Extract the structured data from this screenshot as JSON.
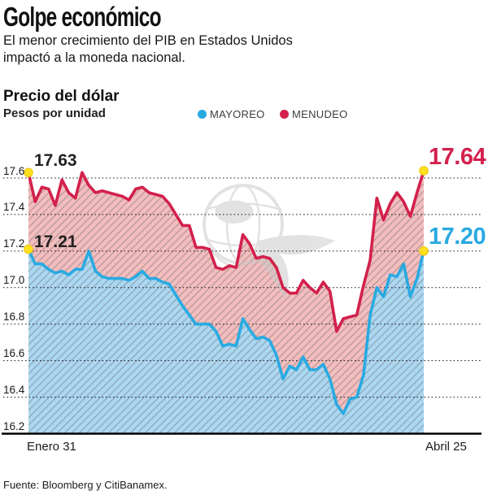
{
  "header": {
    "title": "Golpe económico",
    "subtitle": "El menor crecimiento del PIB en Estados Unidos\nimpactó a la moneda nacional."
  },
  "chart": {
    "title": "Precio del dólar",
    "unit": "Pesos por unidad",
    "legend": [
      {
        "label": "MAYOREO",
        "color": "#29aae1"
      },
      {
        "label": "MENUDEO",
        "color": "#d3204c"
      }
    ]
  },
  "footer": {
    "source": "Fuente: Bloomberg y CitiBanamex."
  },
  "colors": {
    "crimson": "#d3204c",
    "cyan": "#29aae1",
    "pink_fill": "#f3bdbe",
    "blue_fill": "#abd7f1",
    "marker_yellow": "#ffe01e",
    "marker_ring": "#edc417",
    "grid": "#1a1a1a",
    "watermark_gray": "#c7c7c7"
  },
  "chart_data": {
    "type": "area",
    "title": "Precio del dólar",
    "ylabel": "Pesos por unidad",
    "x_axis": {
      "start_label": "Enero 31",
      "end_label": "Abril 25"
    },
    "y_ticks": [
      "17.6",
      "17.4",
      "17.2",
      "17.0",
      "16.8",
      "16.6",
      "16.4",
      "16.2"
    ],
    "ylim": [
      16.2,
      17.72
    ],
    "grid": true,
    "legend_position": "top",
    "annotations": {
      "menudeo_start": "17.63",
      "mayoreo_start": "17.21",
      "menudeo_end": "17.64",
      "mayoreo_end": "17.20"
    },
    "series": [
      {
        "name": "MAYOREO",
        "color": "#29aae1",
        "fill": "#abd7f1",
        "start_value": 17.21,
        "end_value": 17.2,
        "values": [
          17.21,
          17.13,
          17.13,
          17.1,
          17.08,
          17.09,
          17.07,
          17.1,
          17.1,
          17.2,
          17.09,
          17.06,
          17.05,
          17.05,
          17.05,
          17.04,
          17.06,
          17.09,
          17.05,
          17.05,
          17.03,
          17.02,
          16.96,
          16.9,
          16.85,
          16.8,
          16.8,
          16.8,
          16.76,
          16.68,
          16.69,
          16.68,
          16.83,
          16.77,
          16.72,
          16.73,
          16.71,
          16.63,
          16.5,
          16.57,
          16.55,
          16.62,
          16.55,
          16.55,
          16.58,
          16.5,
          16.36,
          16.31,
          16.39,
          16.4,
          16.52,
          16.85,
          17.0,
          16.95,
          17.07,
          17.06,
          17.13,
          16.95,
          17.05,
          17.2
        ]
      },
      {
        "name": "MENUDEO",
        "color": "#d3204c",
        "fill": "#f3bdbe",
        "start_value": 17.63,
        "end_value": 17.64,
        "values": [
          17.63,
          17.47,
          17.55,
          17.54,
          17.45,
          17.59,
          17.52,
          17.49,
          17.63,
          17.56,
          17.52,
          17.53,
          17.52,
          17.51,
          17.5,
          17.48,
          17.54,
          17.55,
          17.52,
          17.51,
          17.5,
          17.46,
          17.4,
          17.34,
          17.34,
          17.22,
          17.22,
          17.21,
          17.11,
          17.1,
          17.12,
          17.11,
          17.29,
          17.24,
          17.16,
          17.17,
          17.16,
          17.11,
          17.0,
          16.97,
          16.97,
          17.04,
          17.0,
          16.97,
          17.03,
          16.98,
          16.76,
          16.83,
          16.84,
          16.85,
          17.01,
          17.15,
          17.49,
          17.37,
          17.46,
          17.52,
          17.47,
          17.39,
          17.52,
          17.64
        ]
      }
    ]
  }
}
